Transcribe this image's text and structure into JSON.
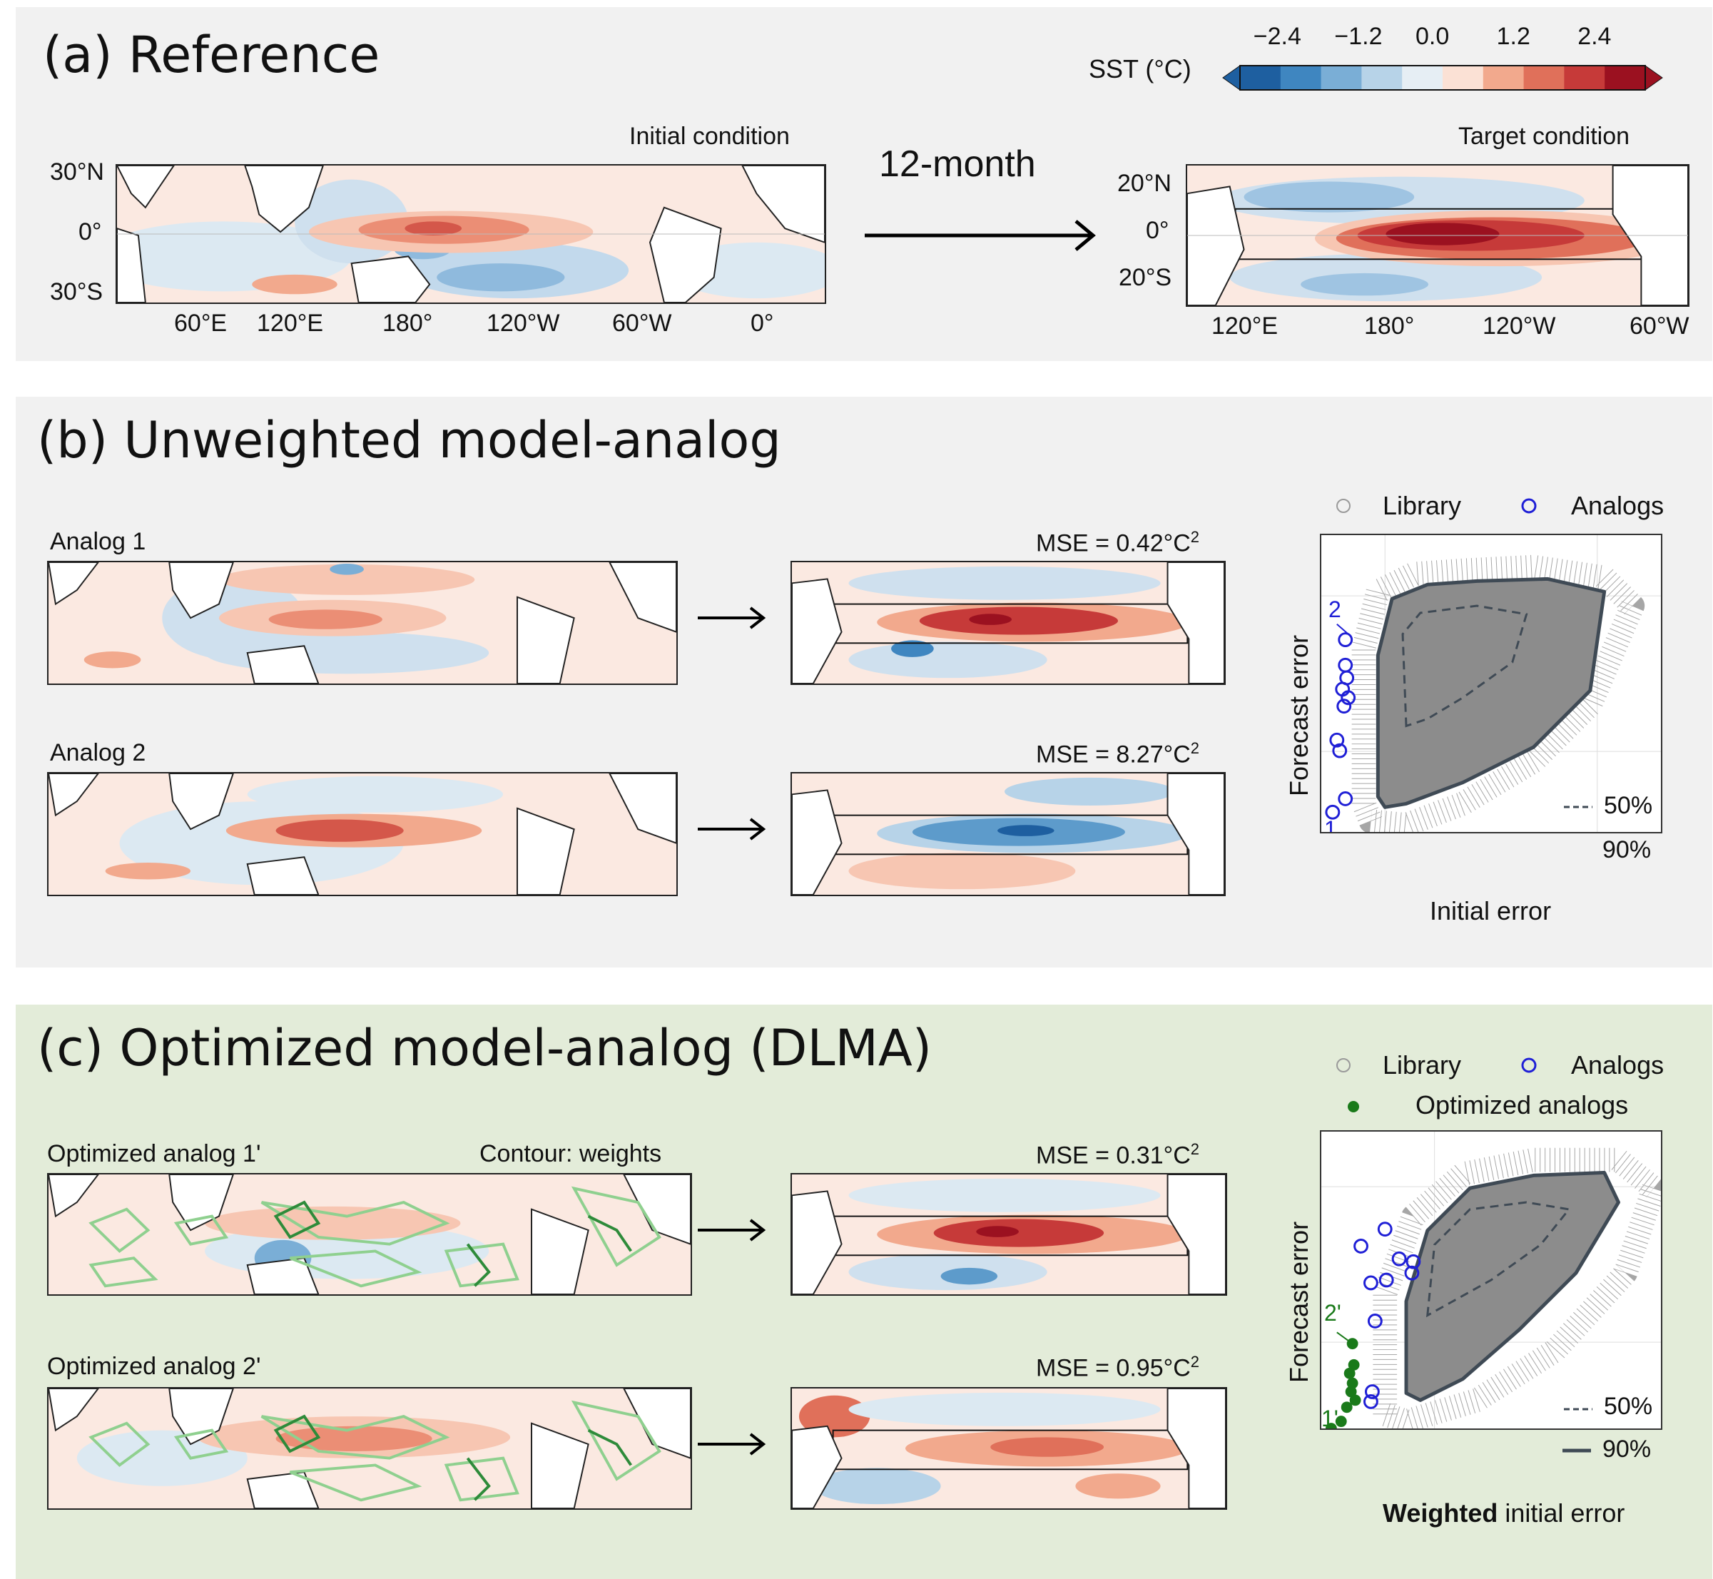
{
  "panel_a": {
    "title": "(a) Reference",
    "initial_title": "Initial condition",
    "target_title": "Target condition",
    "arrow_label": "12-month",
    "initial_lat_ticks": [
      "30°N",
      "0°",
      "30°S"
    ],
    "initial_lon_ticks": [
      "60°E",
      "120°E",
      "180°",
      "120°W",
      "60°W",
      "0°"
    ],
    "target_lat_ticks": [
      "20°N",
      "0°",
      "20°S"
    ],
    "target_lon_ticks": [
      "120°E",
      "180°",
      "120°W",
      "60°W"
    ],
    "colorbar": {
      "label": "SST (°C)",
      "ticks": [
        "−2.4",
        "−1.2",
        "0.0",
        "1.2",
        "2.4"
      ],
      "colors": [
        "#1e5fa0",
        "#3f86c0",
        "#7aaed6",
        "#b7d3e8",
        "#e6eef4",
        "#fbe1d5",
        "#f2a98d",
        "#e0705a",
        "#c63a39",
        "#9b1120"
      ]
    }
  },
  "panel_b": {
    "title": "(b) Unweighted model-analog",
    "analog1_label": "Analog 1",
    "analog2_label": "Analog 2",
    "mse1": "MSE = 0.42°C",
    "mse2": "MSE = 8.27°C",
    "mse_sup": "2",
    "legend_library": "Library",
    "legend_analogs": "Analogs",
    "legend_50": "50%",
    "legend_90": "90%",
    "xlabel": "Initial error",
    "ylabel": "Forecast error",
    "analog_marker_1": "1",
    "analog_marker_2": "2"
  },
  "panel_c": {
    "title": "(c) Optimized model-analog (DLMA)",
    "analog1_label": "Optimized analog 1'",
    "analog2_label": "Optimized analog 2'",
    "contour_note": "Contour: weights",
    "mse1": "MSE = 0.31°C",
    "mse2": "MSE = 0.95°C",
    "mse_sup": "2",
    "legend_library": "Library",
    "legend_analogs": "Analogs",
    "legend_optimized": "Optimized analogs",
    "legend_50": "50%",
    "legend_90": "90%",
    "xlabel_bold": "Weighted",
    "xlabel_rest": " initial error",
    "ylabel": "Forecast error",
    "analog_marker_1": "1'",
    "analog_marker_2": "2'"
  },
  "colors": {
    "panel_bg_gray": "#f1f1f1",
    "panel_bg_green": "#e3ecd9",
    "library_gray": "#9a9a9a",
    "analog_blue": "#1f1fd6",
    "optimized_green": "#1a7a1a",
    "contour_light": "#8fd08f",
    "contour_dark": "#2e8b3a"
  }
}
